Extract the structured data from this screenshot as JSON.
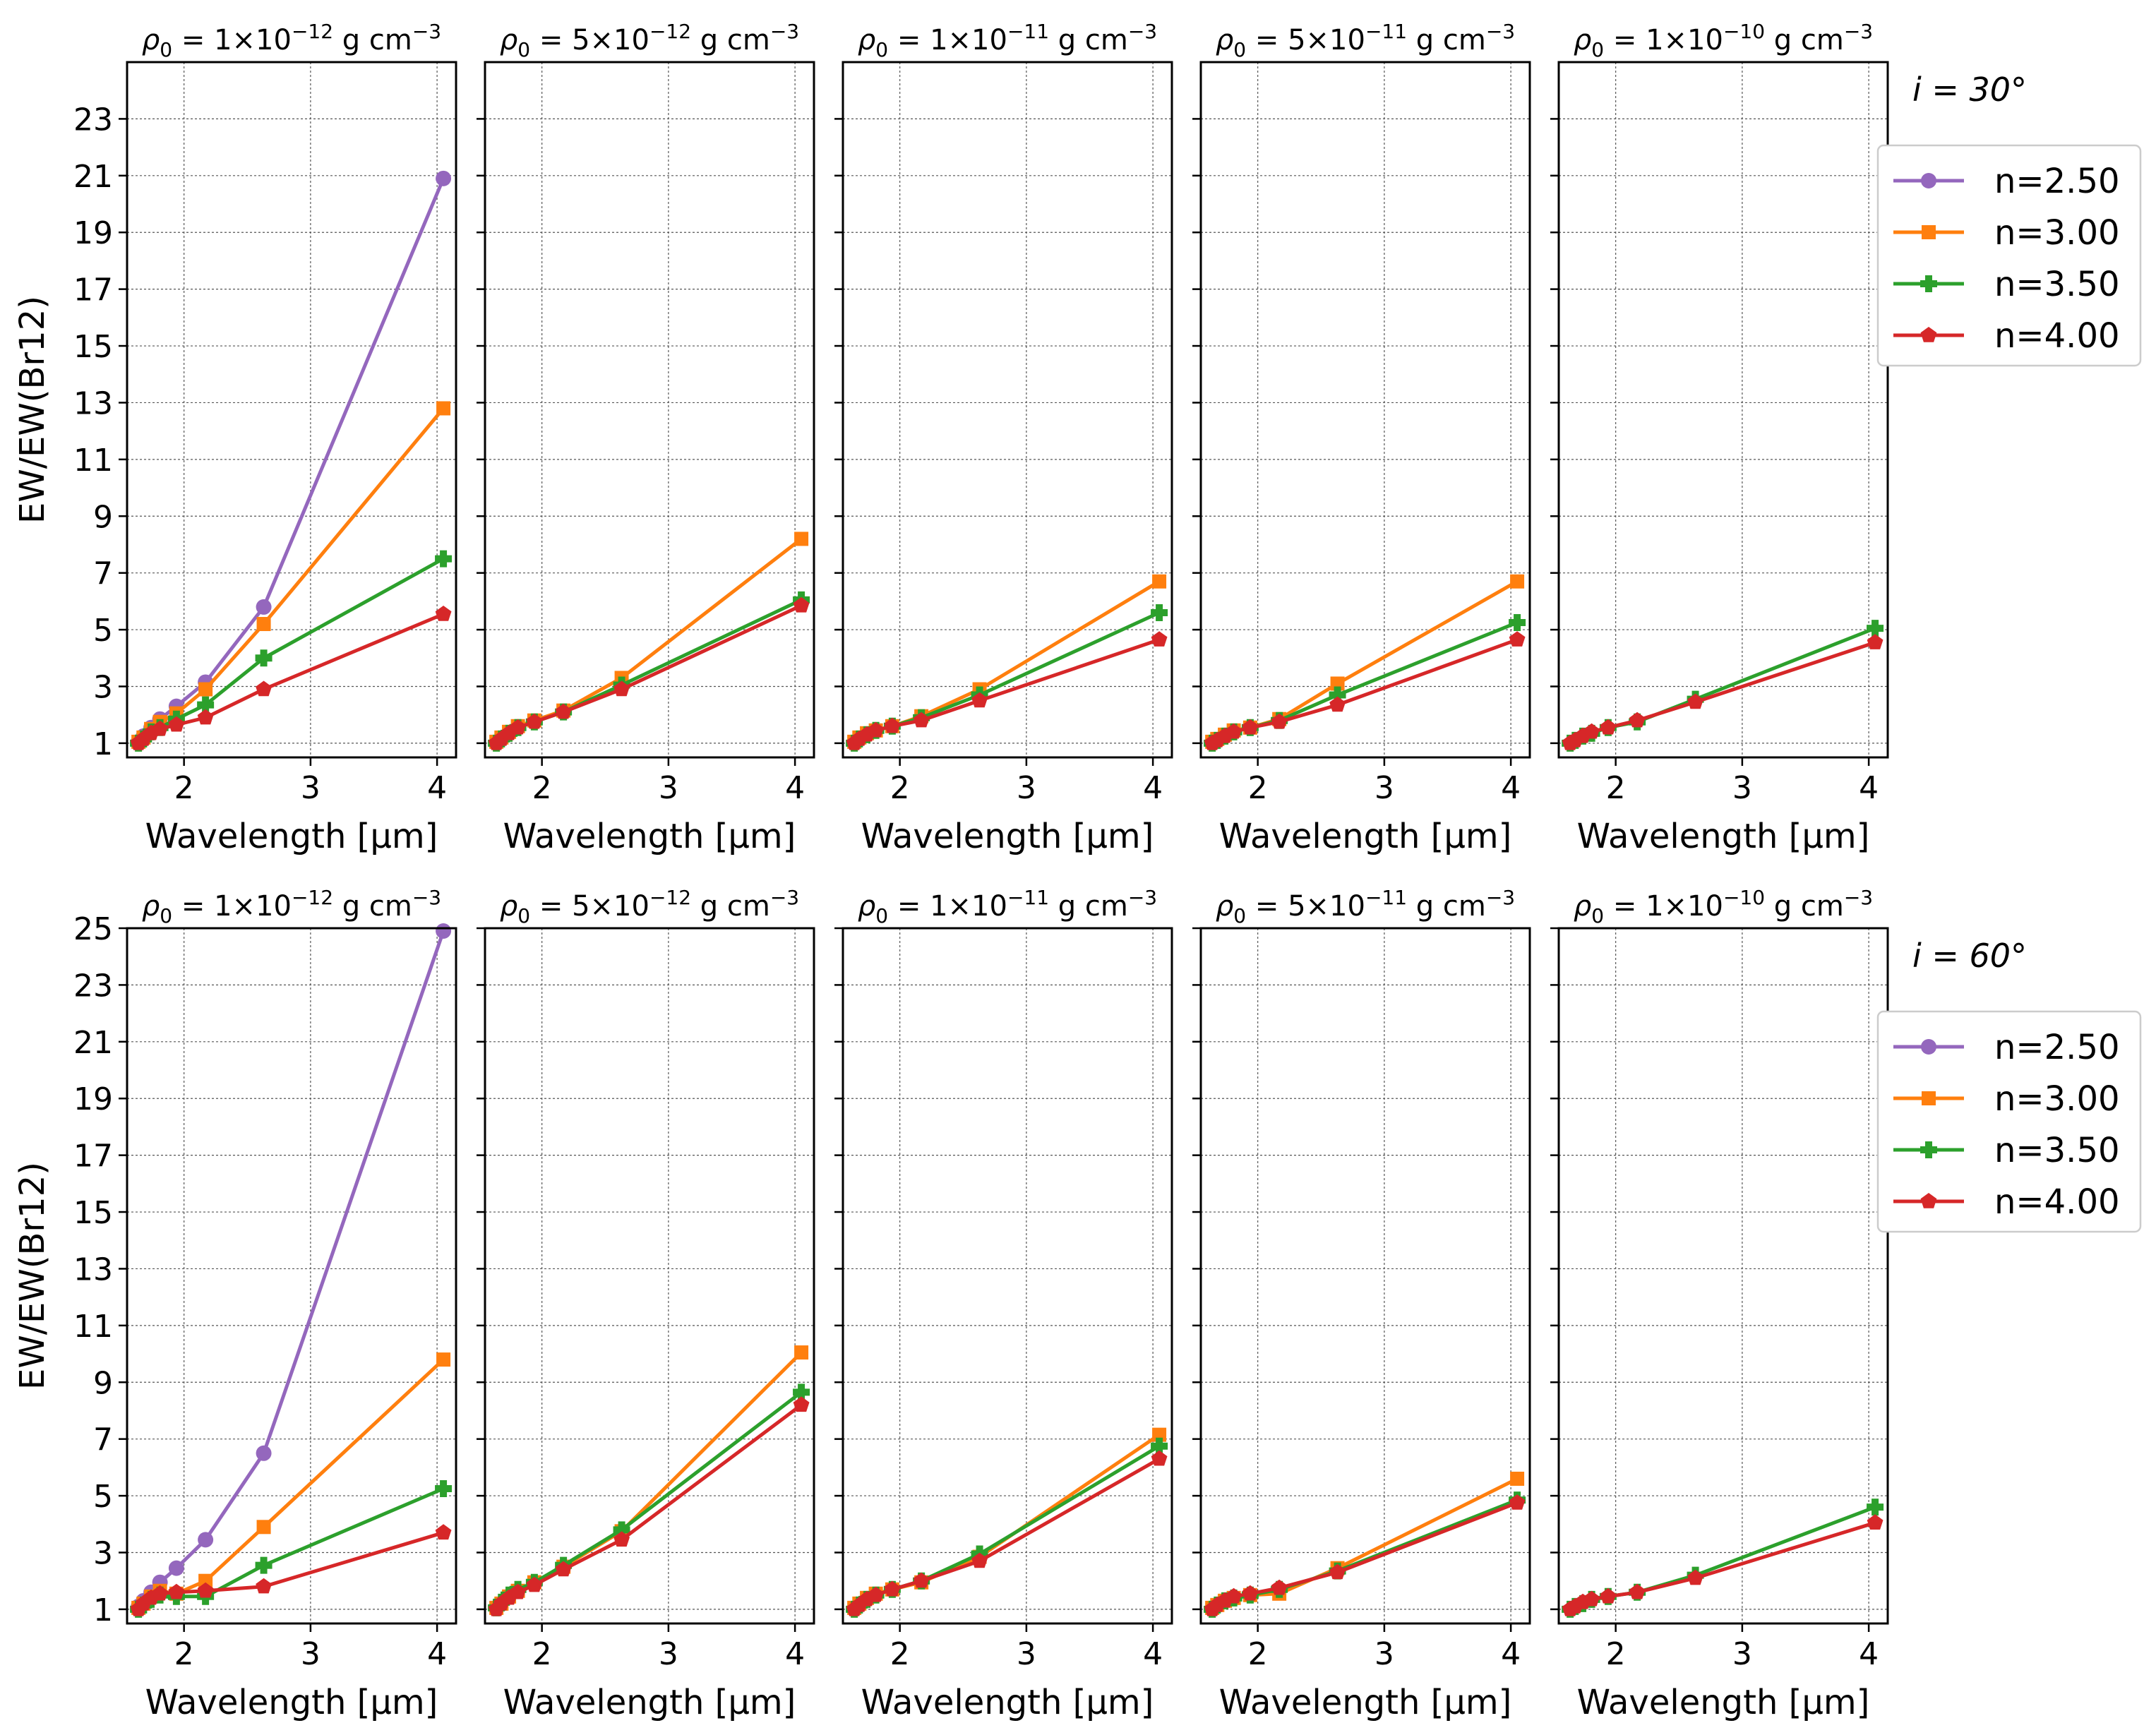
{
  "chart_data": {
    "type": "line",
    "ylabel": "EW/EW(Br12)",
    "xlabel": "Wavelength [μm]",
    "xlim": [
      1.55,
      4.15
    ],
    "x_ticks": [
      "2",
      "3",
      "4"
    ],
    "colors": {
      "n=2.50": "#9467bd",
      "n=3.00": "#ff7f0e",
      "n=3.50": "#2ca02c",
      "n=4.00": "#d62728"
    },
    "markers": {
      "n=2.50": "circle",
      "n=3.00": "square",
      "n=3.50": "plus",
      "n=4.00": "pentagon"
    },
    "legend_labels": [
      "n=2.50",
      "n=3.00",
      "n=3.50",
      "n=4.00"
    ],
    "x": [
      1.64,
      1.68,
      1.74,
      1.81,
      1.94,
      2.17,
      2.63,
      4.05
    ],
    "density_titles": [
      {
        "pre": "ρ",
        "sub": "0",
        "mid": " = 1×10",
        "sup": "−12",
        "post": " g cm",
        "sup2": "−3"
      },
      {
        "pre": "ρ",
        "sub": "0",
        "mid": " = 5×10",
        "sup": "−12",
        "post": " g cm",
        "sup2": "−3"
      },
      {
        "pre": "ρ",
        "sub": "0",
        "mid": " = 1×10",
        "sup": "−11",
        "post": " g cm",
        "sup2": "−3"
      },
      {
        "pre": "ρ",
        "sub": "0",
        "mid": " = 5×10",
        "sup": "−11",
        "post": " g cm",
        "sup2": "−3"
      },
      {
        "pre": "ρ",
        "sub": "0",
        "mid": " = 1×10",
        "sup": "−10",
        "post": " g cm",
        "sup2": "−3"
      }
    ],
    "rows": [
      {
        "inclination": "i = 30°",
        "ylim": [
          0.5,
          25
        ],
        "y_ticks": [
          "1",
          "3",
          "5",
          "7",
          "9",
          "11",
          "13",
          "15",
          "17",
          "19",
          "21",
          "23"
        ],
        "panels": [
          {
            "series": [
              {
                "name": "n=2.50",
                "values": [
                  1.05,
                  1.25,
                  1.55,
                  1.85,
                  2.3,
                  3.15,
                  5.8,
                  20.9
                ]
              },
              {
                "name": "n=3.00",
                "values": [
                  1.05,
                  1.2,
                  1.5,
                  1.75,
                  2.05,
                  2.9,
                  5.2,
                  12.8
                ]
              },
              {
                "name": "n=3.50",
                "values": [
                  1.0,
                  1.15,
                  1.4,
                  1.55,
                  1.85,
                  2.35,
                  4.0,
                  7.5
                ]
              },
              {
                "name": "n=4.00",
                "values": [
                  1.0,
                  1.15,
                  1.35,
                  1.5,
                  1.65,
                  1.9,
                  2.9,
                  5.55
                ]
              }
            ]
          },
          {
            "series": [
              {
                "name": "n=3.00",
                "values": [
                  1.05,
                  1.2,
                  1.4,
                  1.6,
                  1.8,
                  2.15,
                  3.3,
                  8.2
                ]
              },
              {
                "name": "n=3.50",
                "values": [
                  1.0,
                  1.15,
                  1.35,
                  1.55,
                  1.75,
                  2.1,
                  3.05,
                  6.05
                ]
              },
              {
                "name": "n=4.00",
                "values": [
                  1.0,
                  1.15,
                  1.35,
                  1.55,
                  1.75,
                  2.1,
                  2.9,
                  5.85
                ]
              }
            ]
          },
          {
            "series": [
              {
                "name": "n=3.00",
                "values": [
                  1.05,
                  1.2,
                  1.35,
                  1.45,
                  1.6,
                  1.95,
                  2.9,
                  6.7
                ]
              },
              {
                "name": "n=3.50",
                "values": [
                  1.0,
                  1.15,
                  1.3,
                  1.45,
                  1.6,
                  1.9,
                  2.7,
                  5.6
                ]
              },
              {
                "name": "n=4.00",
                "values": [
                  1.0,
                  1.15,
                  1.3,
                  1.45,
                  1.6,
                  1.8,
                  2.5,
                  4.65
                ]
              }
            ]
          },
          {
            "series": [
              {
                "name": "n=3.00",
                "values": [
                  1.05,
                  1.15,
                  1.3,
                  1.45,
                  1.55,
                  1.85,
                  3.1,
                  6.7
                ]
              },
              {
                "name": "n=3.50",
                "values": [
                  1.0,
                  1.1,
                  1.25,
                  1.4,
                  1.55,
                  1.8,
                  2.7,
                  5.25
                ]
              },
              {
                "name": "n=4.00",
                "values": [
                  1.0,
                  1.1,
                  1.25,
                  1.4,
                  1.55,
                  1.75,
                  2.35,
                  4.65
                ]
              }
            ]
          },
          {
            "series": [
              {
                "name": "n=3.50",
                "values": [
                  1.0,
                  1.1,
                  1.25,
                  1.35,
                  1.55,
                  1.75,
                  2.55,
                  5.05
                ]
              },
              {
                "name": "n=4.00",
                "values": [
                  1.0,
                  1.1,
                  1.25,
                  1.4,
                  1.55,
                  1.8,
                  2.45,
                  4.55
                ]
              }
            ]
          }
        ]
      },
      {
        "inclination": "i = 60°",
        "ylim": [
          0.5,
          25
        ],
        "y_ticks": [
          "1",
          "3",
          "5",
          "7",
          "9",
          "11",
          "13",
          "15",
          "17",
          "19",
          "21",
          "23",
          "25"
        ],
        "panels": [
          {
            "series": [
              {
                "name": "n=2.50",
                "values": [
                  1.1,
                  1.3,
                  1.6,
                  1.95,
                  2.45,
                  3.45,
                  6.5,
                  24.9
                ]
              },
              {
                "name": "n=3.00",
                "values": [
                  1.05,
                  1.2,
                  1.45,
                  1.65,
                  1.55,
                  2.0,
                  3.9,
                  9.8
                ]
              },
              {
                "name": "n=3.50",
                "values": [
                  1.0,
                  1.15,
                  1.35,
                  1.5,
                  1.45,
                  1.45,
                  2.55,
                  5.25
                ]
              },
              {
                "name": "n=4.00",
                "values": [
                  1.0,
                  1.2,
                  1.4,
                  1.55,
                  1.6,
                  1.65,
                  1.8,
                  3.7
                ]
              }
            ]
          },
          {
            "series": [
              {
                "name": "n=3.00",
                "values": [
                  1.05,
                  1.2,
                  1.45,
                  1.65,
                  1.95,
                  2.5,
                  3.75,
                  10.05
                ]
              },
              {
                "name": "n=3.50",
                "values": [
                  1.05,
                  1.25,
                  1.5,
                  1.7,
                  1.95,
                  2.55,
                  3.8,
                  8.65
                ]
              },
              {
                "name": "n=4.00",
                "values": [
                  1.0,
                  1.2,
                  1.4,
                  1.6,
                  1.85,
                  2.4,
                  3.45,
                  8.2
                ]
              }
            ]
          },
          {
            "series": [
              {
                "name": "n=3.00",
                "values": [
                  1.05,
                  1.2,
                  1.4,
                  1.55,
                  1.7,
                  1.95,
                  2.85,
                  7.15
                ]
              },
              {
                "name": "n=3.50",
                "values": [
                  1.0,
                  1.15,
                  1.35,
                  1.5,
                  1.7,
                  2.0,
                  2.95,
                  6.75
                ]
              },
              {
                "name": "n=4.00",
                "values": [
                  1.0,
                  1.15,
                  1.35,
                  1.5,
                  1.7,
                  2.0,
                  2.7,
                  6.3
                ]
              }
            ]
          },
          {
            "series": [
              {
                "name": "n=3.00",
                "values": [
                  1.05,
                  1.15,
                  1.3,
                  1.4,
                  1.5,
                  1.55,
                  2.45,
                  5.6
                ]
              },
              {
                "name": "n=3.50",
                "values": [
                  1.0,
                  1.15,
                  1.3,
                  1.4,
                  1.5,
                  1.7,
                  2.35,
                  4.85
                ]
              },
              {
                "name": "n=4.00",
                "values": [
                  1.0,
                  1.15,
                  1.3,
                  1.45,
                  1.55,
                  1.75,
                  2.3,
                  4.75
                ]
              }
            ]
          },
          {
            "series": [
              {
                "name": "n=3.50",
                "values": [
                  1.0,
                  1.1,
                  1.2,
                  1.35,
                  1.45,
                  1.6,
                  2.2,
                  4.6
                ]
              },
              {
                "name": "n=4.00",
                "values": [
                  1.0,
                  1.1,
                  1.25,
                  1.35,
                  1.45,
                  1.6,
                  2.1,
                  4.05
                ]
              }
            ]
          }
        ]
      }
    ]
  }
}
